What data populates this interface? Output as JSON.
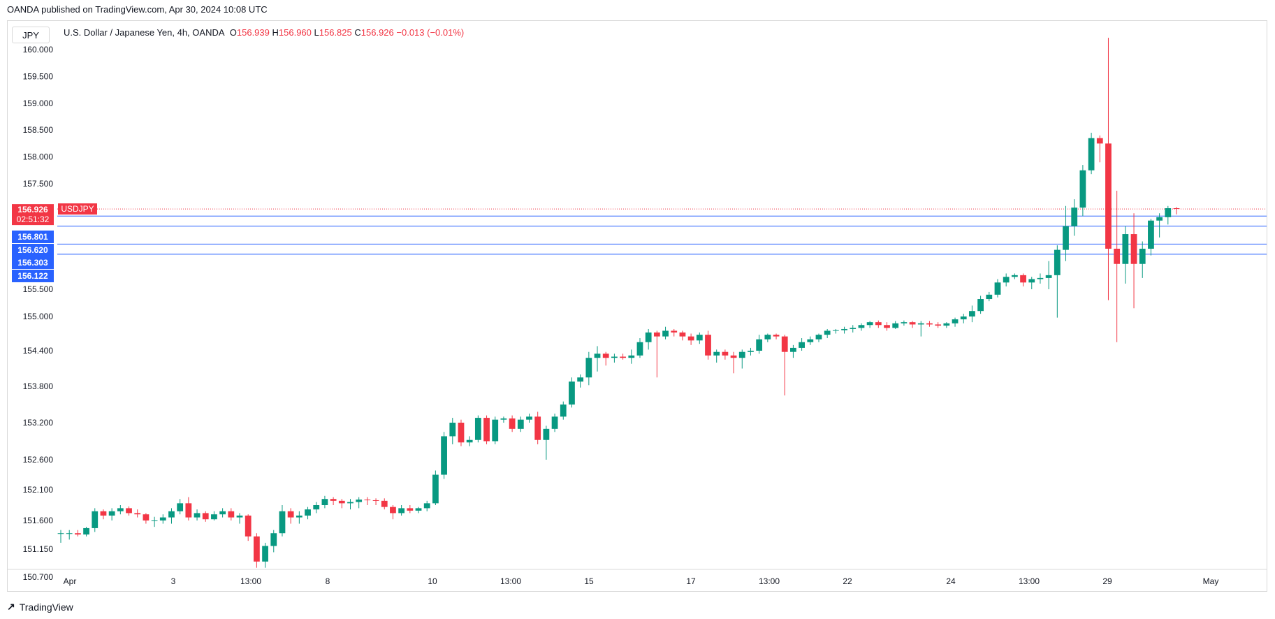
{
  "header": {
    "caption": "OANDA published on TradingView.com, Apr 30, 2024 10:08 UTC"
  },
  "scale_chip": "JPY",
  "legend": {
    "title": "U.S. Dollar / Japanese Yen, 4h, OANDA",
    "o_label": "O",
    "o": "156.939",
    "h_label": "H",
    "h": "156.960",
    "l_label": "L",
    "l": "156.825",
    "c_label": "C",
    "c": "156.926",
    "change": "−0.013 (−0.01%)"
  },
  "footer": {
    "brand": "TradingView"
  },
  "colors": {
    "up": "#089981",
    "down": "#f23645",
    "level": "#2962ff",
    "last_price": "#f23645",
    "axis_text": "#131722"
  },
  "chart_data": {
    "type": "candlestick",
    "symbol": "USDJPY",
    "timeframe": "4h",
    "y_ticks": [
      "160.000",
      "159.500",
      "159.000",
      "158.500",
      "158.000",
      "157.500",
      "155.500",
      "155.000",
      "154.400",
      "153.800",
      "153.200",
      "152.600",
      "152.100",
      "151.600",
      "151.150",
      "150.700"
    ],
    "x_ticks": [
      "Apr",
      "3",
      "13:00",
      "8",
      "10",
      "13:00",
      "15",
      "17",
      "13:00",
      "22",
      "24",
      "13:00",
      "29",
      "May"
    ],
    "last_price": {
      "label": "USDJPY",
      "value": "156.926",
      "countdown": "02:51:32"
    },
    "levels": [
      "156.801",
      "156.620",
      "156.303",
      "156.122"
    ],
    "candles": [
      [
        151.4,
        151.45,
        151.25,
        151.4
      ],
      [
        151.4,
        151.45,
        151.3,
        151.4
      ],
      [
        151.4,
        151.45,
        151.35,
        151.38
      ],
      [
        151.38,
        151.5,
        151.35,
        151.48
      ],
      [
        151.48,
        151.8,
        151.42,
        151.75
      ],
      [
        151.75,
        151.78,
        151.62,
        151.68
      ],
      [
        151.68,
        151.8,
        151.6,
        151.75
      ],
      [
        151.75,
        151.85,
        151.7,
        151.8
      ],
      [
        151.8,
        151.83,
        151.68,
        151.72
      ],
      [
        151.72,
        151.78,
        151.65,
        151.7
      ],
      [
        151.7,
        151.72,
        151.55,
        151.6
      ],
      [
        151.6,
        151.66,
        151.5,
        151.6
      ],
      [
        151.6,
        151.7,
        151.55,
        151.65
      ],
      [
        151.65,
        151.8,
        151.55,
        151.75
      ],
      [
        151.75,
        151.95,
        151.7,
        151.88
      ],
      [
        151.88,
        151.98,
        151.6,
        151.65
      ],
      [
        151.65,
        151.78,
        151.6,
        151.72
      ],
      [
        151.72,
        151.75,
        151.58,
        151.62
      ],
      [
        151.62,
        151.75,
        151.6,
        151.7
      ],
      [
        151.7,
        151.8,
        151.65,
        151.75
      ],
      [
        151.75,
        151.8,
        151.6,
        151.65
      ],
      [
        151.65,
        151.72,
        151.55,
        151.68
      ],
      [
        151.68,
        151.7,
        151.28,
        151.35
      ],
      [
        151.35,
        151.4,
        150.85,
        150.95
      ],
      [
        150.95,
        151.25,
        150.85,
        151.2
      ],
      [
        151.2,
        151.45,
        151.1,
        151.4
      ],
      [
        151.4,
        151.85,
        151.35,
        151.75
      ],
      [
        151.75,
        151.8,
        151.55,
        151.65
      ],
      [
        151.65,
        151.75,
        151.55,
        151.68
      ],
      [
        151.68,
        151.82,
        151.62,
        151.78
      ],
      [
        151.78,
        151.9,
        151.72,
        151.85
      ],
      [
        151.85,
        152.0,
        151.8,
        151.95
      ],
      [
        151.95,
        151.98,
        151.85,
        151.92
      ],
      [
        151.92,
        151.95,
        151.8,
        151.88
      ],
      [
        151.88,
        151.95,
        151.78,
        151.9
      ],
      [
        151.9,
        151.98,
        151.8,
        151.94
      ],
      [
        151.94,
        151.98,
        151.85,
        151.93
      ],
      [
        151.93,
        151.96,
        151.85,
        151.92
      ],
      [
        151.92,
        151.96,
        151.78,
        151.82
      ],
      [
        151.82,
        151.85,
        151.62,
        151.72
      ],
      [
        151.72,
        151.85,
        151.68,
        151.8
      ],
      [
        151.8,
        151.85,
        151.72,
        151.76
      ],
      [
        151.76,
        151.82,
        151.72,
        151.8
      ],
      [
        151.8,
        151.92,
        151.75,
        151.88
      ],
      [
        151.88,
        152.42,
        151.85,
        152.35
      ],
      [
        152.35,
        153.05,
        152.28,
        152.98
      ],
      [
        152.98,
        153.28,
        152.85,
        153.2
      ],
      [
        153.2,
        153.25,
        152.82,
        152.88
      ],
      [
        152.88,
        152.98,
        152.82,
        152.92
      ],
      [
        152.92,
        153.32,
        152.88,
        153.28
      ],
      [
        153.28,
        153.32,
        152.85,
        152.9
      ],
      [
        152.9,
        153.3,
        152.85,
        153.25
      ],
      [
        153.25,
        153.3,
        153.2,
        153.27
      ],
      [
        153.27,
        153.32,
        153.05,
        153.1
      ],
      [
        153.1,
        153.3,
        153.05,
        153.25
      ],
      [
        153.25,
        153.35,
        153.2,
        153.3
      ],
      [
        153.3,
        153.38,
        152.85,
        152.92
      ],
      [
        152.92,
        153.15,
        152.6,
        153.1
      ],
      [
        153.1,
        153.35,
        153.05,
        153.3
      ],
      [
        153.3,
        153.55,
        153.25,
        153.5
      ],
      [
        153.5,
        153.95,
        153.45,
        153.88
      ],
      [
        153.88,
        154.0,
        153.78,
        153.95
      ],
      [
        153.95,
        154.38,
        153.82,
        154.28
      ],
      [
        154.28,
        154.48,
        154.05,
        154.35
      ],
      [
        154.35,
        154.38,
        154.15,
        154.28
      ],
      [
        154.28,
        154.35,
        154.2,
        154.3
      ],
      [
        154.3,
        154.35,
        154.25,
        154.28
      ],
      [
        154.28,
        154.42,
        154.18,
        154.32
      ],
      [
        154.32,
        154.62,
        154.28,
        154.55
      ],
      [
        154.55,
        154.78,
        154.42,
        154.72
      ],
      [
        154.72,
        154.75,
        153.95,
        154.65
      ],
      [
        154.65,
        154.82,
        154.6,
        154.75
      ],
      [
        154.75,
        154.78,
        154.65,
        154.72
      ],
      [
        154.72,
        154.75,
        154.58,
        154.65
      ],
      [
        154.65,
        154.7,
        154.5,
        154.58
      ],
      [
        154.58,
        154.72,
        154.52,
        154.68
      ],
      [
        154.68,
        154.75,
        154.25,
        154.32
      ],
      [
        154.32,
        154.42,
        154.2,
        154.38
      ],
      [
        154.38,
        154.42,
        154.25,
        154.32
      ],
      [
        154.32,
        154.38,
        154.02,
        154.28
      ],
      [
        154.28,
        154.42,
        154.1,
        154.38
      ],
      [
        154.38,
        154.45,
        154.32,
        154.4
      ],
      [
        154.4,
        154.68,
        154.35,
        154.6
      ],
      [
        154.6,
        154.7,
        154.55,
        154.68
      ],
      [
        154.68,
        154.7,
        154.6,
        154.65
      ],
      [
        154.65,
        154.68,
        153.65,
        154.38
      ],
      [
        154.38,
        154.5,
        154.28,
        154.45
      ],
      [
        154.45,
        154.62,
        154.4,
        154.55
      ],
      [
        154.55,
        154.65,
        154.5,
        154.6
      ],
      [
        154.6,
        154.7,
        154.55,
        154.68
      ],
      [
        154.68,
        154.78,
        154.62,
        154.75
      ],
      [
        154.75,
        154.78,
        154.7,
        154.76
      ],
      [
        154.76,
        154.82,
        154.7,
        154.78
      ],
      [
        154.78,
        154.85,
        154.72,
        154.8
      ],
      [
        154.8,
        154.88,
        154.75,
        154.85
      ],
      [
        154.85,
        154.92,
        154.8,
        154.9
      ],
      [
        154.9,
        154.93,
        154.8,
        154.85
      ],
      [
        154.85,
        154.9,
        154.75,
        154.8
      ],
      [
        154.8,
        154.92,
        154.78,
        154.88
      ],
      [
        154.88,
        154.93,
        154.84,
        154.9
      ],
      [
        154.9,
        154.92,
        154.8,
        154.86
      ],
      [
        154.86,
        154.92,
        154.65,
        154.88
      ],
      [
        154.88,
        154.92,
        154.82,
        154.86
      ],
      [
        154.86,
        154.9,
        154.8,
        154.84
      ],
      [
        154.84,
        154.9,
        154.8,
        154.88
      ],
      [
        154.88,
        154.98,
        154.82,
        154.95
      ],
      [
        154.95,
        155.05,
        154.88,
        155.0
      ],
      [
        155.0,
        155.2,
        154.9,
        155.1
      ],
      [
        155.1,
        155.38,
        155.05,
        155.32
      ],
      [
        155.32,
        155.45,
        155.28,
        155.4
      ],
      [
        155.4,
        155.68,
        155.35,
        155.62
      ],
      [
        155.62,
        155.78,
        155.55,
        155.72
      ],
      [
        155.72,
        155.78,
        155.68,
        155.75
      ],
      [
        155.75,
        155.78,
        155.55,
        155.62
      ],
      [
        155.62,
        155.72,
        155.5,
        155.68
      ],
      [
        155.68,
        155.78,
        155.6,
        155.7
      ],
      [
        155.7,
        156.0,
        155.5,
        155.75
      ],
      [
        155.75,
        156.28,
        154.98,
        156.2
      ],
      [
        156.2,
        156.98,
        156.0,
        156.62
      ],
      [
        156.62,
        157.1,
        156.45,
        156.95
      ],
      [
        156.95,
        157.85,
        156.8,
        157.75
      ],
      [
        157.75,
        158.45,
        157.68,
        158.35
      ],
      [
        158.35,
        158.4,
        157.9,
        158.25
      ],
      [
        158.25,
        160.22,
        155.3,
        156.22
      ],
      [
        156.22,
        157.25,
        154.55,
        155.95
      ],
      [
        155.95,
        156.62,
        155.6,
        156.48
      ],
      [
        156.48,
        156.85,
        155.15,
        155.95
      ],
      [
        155.95,
        156.35,
        155.7,
        156.22
      ],
      [
        156.22,
        156.75,
        156.1,
        156.72
      ],
      [
        156.72,
        156.85,
        156.42,
        156.78
      ],
      [
        156.78,
        156.98,
        156.65,
        156.94
      ],
      [
        156.94,
        156.96,
        156.83,
        156.93
      ]
    ]
  }
}
